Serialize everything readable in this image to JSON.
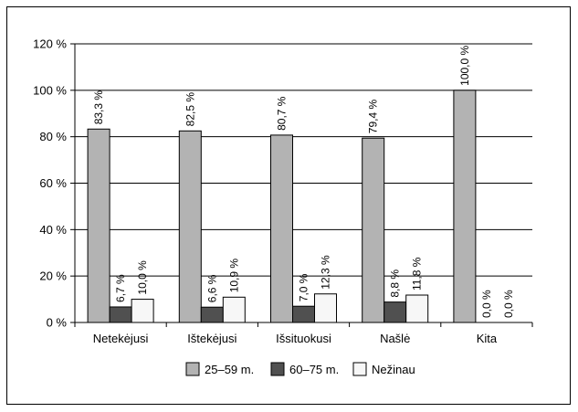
{
  "chart_data": {
    "type": "bar",
    "title": "",
    "xlabel": "",
    "ylabel": "",
    "ylim": [
      0,
      120
    ],
    "yticks": [
      0,
      20,
      40,
      60,
      80,
      100,
      120
    ],
    "ytick_labels": [
      "0 %",
      "20 %",
      "40 %",
      "60 %",
      "80 %",
      "100 %",
      "120 %"
    ],
    "grid": true,
    "legend_position": "bottom",
    "categories": [
      "Netekėjusi",
      "Ištekėjusi",
      "Išsituokusi",
      "Našlė",
      "Kita"
    ],
    "series": [
      {
        "name": "25–59 m.",
        "color": "#b3b3b3",
        "values": [
          83.3,
          82.5,
          80.7,
          79.4,
          100.0
        ],
        "labels": [
          "83,3 %",
          "82,5 %",
          "80,7 %",
          "79,4 %",
          "100,0 %"
        ]
      },
      {
        "name": "60–75 m.",
        "color": "#505050",
        "values": [
          6.7,
          6.6,
          7.0,
          8.8,
          0.0
        ],
        "labels": [
          "6,7 %",
          "6,6 %",
          "7,0 %",
          "8,8 %",
          "0,0 %"
        ]
      },
      {
        "name": "Nežinau",
        "color": "#f7f7f7",
        "values": [
          10.0,
          10.9,
          12.3,
          11.8,
          0.0
        ],
        "labels": [
          "10,0 %",
          "10,9 %",
          "12,3 %",
          "11,8 %",
          "0,0 %"
        ]
      }
    ]
  }
}
